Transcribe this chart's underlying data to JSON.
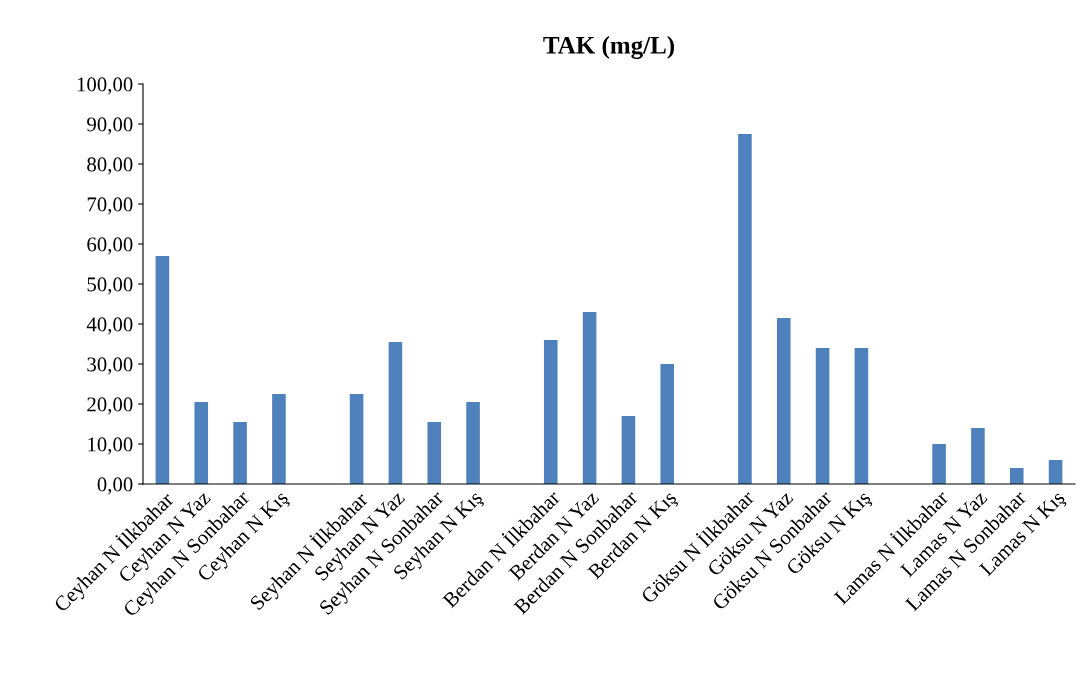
{
  "chart_data": {
    "type": "bar",
    "title": "TAK (mg/L)",
    "categories": [
      "Ceyhan N İlkbahar",
      "Ceyhan N Yaz",
      "Ceyhan N Sonbahar",
      "Ceyhan N Kış",
      null,
      "Seyhan N İlkbahar",
      "Seyhan N Yaz",
      "Seyhan N Sonbahar",
      "Seyhan N Kış",
      null,
      "Berdan N İlkbahar",
      "Berdan N Yaz",
      "Berdan N Sonbahar",
      "Berdan N Kış",
      null,
      "Göksu N İlkbahar",
      "Göksu N Yaz",
      "Göksu N Sonbahar",
      "Göksu N Kış",
      null,
      "Lamas N İlkbahar",
      "Lamas N Yaz",
      "Lamas N Sonbahar",
      "Lamas N Kış"
    ],
    "values": [
      57,
      20.5,
      15.5,
      22.5,
      null,
      22.5,
      35.5,
      15.5,
      20.5,
      null,
      36,
      43,
      17,
      30,
      null,
      87.5,
      41.5,
      34,
      34,
      null,
      10,
      14,
      4,
      6
    ],
    "color": "#4f81bd",
    "ylim": [
      0,
      100
    ],
    "yticks": [
      {
        "value": 0,
        "label": "0,00"
      },
      {
        "value": 10,
        "label": "10,00"
      },
      {
        "value": 20,
        "label": "20,00"
      },
      {
        "value": 30,
        "label": "30,00"
      },
      {
        "value": 40,
        "label": "40,00"
      },
      {
        "value": 50,
        "label": "50,00"
      },
      {
        "value": 60,
        "label": "60,00"
      },
      {
        "value": 70,
        "label": "70,00"
      },
      {
        "value": 80,
        "label": "80,00"
      },
      {
        "value": 90,
        "label": "90,00"
      },
      {
        "value": 100,
        "label": "100,00"
      }
    ],
    "grid": false
  }
}
